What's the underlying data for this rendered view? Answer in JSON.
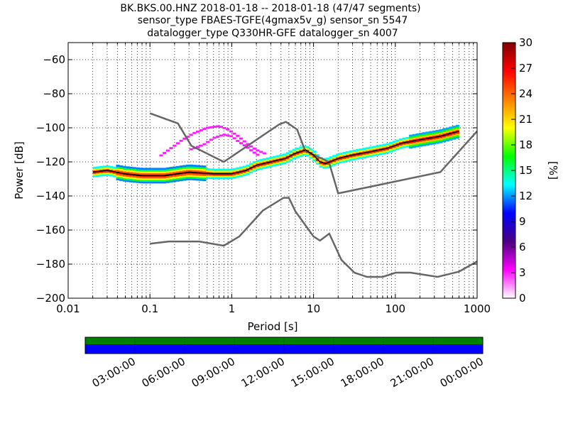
{
  "title": {
    "line1": "BK.BKS.00.HNZ   2018-01-18 -- 2018-01-18  (47/47 segments)",
    "line2": "sensor_type FBAES-TGFE(4gmax5v_g) sensor_sn 5547",
    "line3": "datalogger_type Q330HR-GFE datalogger_sn 4007"
  },
  "chart_data": {
    "type": "heatmap",
    "xlabel": "Period [s]",
    "ylabel": "Power [dB]",
    "xscale": "log",
    "xlim": [
      0.01,
      1000
    ],
    "ylim": [
      -200,
      -50
    ],
    "xticks": [
      0.01,
      0.1,
      1,
      10,
      100,
      1000
    ],
    "xtick_labels": [
      "0.01",
      "0.1",
      "1",
      "10",
      "100",
      "1000"
    ],
    "yticks": [
      -200,
      -180,
      -160,
      -140,
      -120,
      -100,
      -80,
      -60
    ],
    "ytick_labels": [
      "−200",
      "−180",
      "−160",
      "−140",
      "−120",
      "−100",
      "−80",
      "−60"
    ],
    "grid": true,
    "colorbar": {
      "label": "[%]",
      "min": 0,
      "max": 30,
      "ticks": [
        "0",
        "3",
        "6",
        "9",
        "12",
        "15",
        "18",
        "21",
        "24",
        "27",
        "30"
      ],
      "colors": [
        "#ffffff",
        "#ff00ff",
        "#4b0082",
        "#0000ff",
        "#00ffff",
        "#00ff00",
        "#ffff00",
        "#ff7f00",
        "#ff0000",
        "#800000"
      ]
    },
    "series": [
      {
        "role": "new-high-noise-model",
        "x": [
          0.1,
          0.22,
          0.32,
          0.8,
          3.8,
          4.6,
          6.3,
          7.9,
          15.4,
          20,
          354.8,
          10000
        ],
        "y": [
          -91.5,
          -97.4,
          -110.5,
          -120,
          -98,
          -96.5,
          -101,
          -113.5,
          -120,
          -138.5,
          -126,
          -48.5
        ]
      },
      {
        "role": "new-low-noise-model",
        "x": [
          0.1,
          0.17,
          0.4,
          0.8,
          1.24,
          2.4,
          4.3,
          5,
          6,
          10,
          12,
          15.6,
          21.9,
          31.6,
          45,
          70,
          101,
          154,
          328,
          600,
          10000
        ],
        "y": [
          -168,
          -166.7,
          -166.7,
          -169.2,
          -163.7,
          -148.6,
          -141.1,
          -141.1,
          -149,
          -163.8,
          -166.2,
          -162.1,
          -177.5,
          -185,
          -187.5,
          -187.5,
          -185,
          -185,
          -187.5,
          -184.4,
          -151.5
        ]
      },
      {
        "role": "mode",
        "x": [
          0.02,
          0.03,
          0.05,
          0.08,
          0.15,
          0.3,
          0.6,
          1,
          1.5,
          2,
          3,
          4.5,
          6,
          8,
          10,
          12,
          14,
          20,
          30,
          50,
          80,
          120,
          200,
          350,
          600
        ],
        "y": [
          -126,
          -125,
          -127,
          -128,
          -128,
          -126,
          -127,
          -127,
          -125,
          -122,
          -120,
          -118,
          -115,
          -113,
          -116,
          -120,
          -121,
          -118,
          -116,
          -114,
          -112,
          -109,
          -107,
          -105,
          -102
        ]
      },
      {
        "role": "spread-upper",
        "x": [
          0.13,
          0.18,
          0.25,
          0.35,
          0.5,
          0.7,
          0.9,
          1.2,
          1.6,
          2,
          2.5
        ],
        "y": [
          -117,
          -112,
          -107,
          -103,
          -100,
          -99,
          -101,
          -105,
          -110,
          -113,
          -115
        ]
      },
      {
        "role": "spread-lower",
        "x": [
          0.3,
          0.45,
          0.6,
          0.8,
          1,
          1.2,
          1.5,
          1.8,
          2.1
        ],
        "y": [
          -113,
          -110,
          -106,
          -104,
          -105,
          -108,
          -111,
          -114,
          -116
        ]
      }
    ]
  },
  "time_bar": {
    "ticks": [
      "03:00:00",
      "06:00:00",
      "09:00:00",
      "12:00:00",
      "15:00:00",
      "18:00:00",
      "21:00:00",
      "00:00:00"
    ],
    "top_color": "#008000",
    "bottom_color": "#0000ff"
  }
}
